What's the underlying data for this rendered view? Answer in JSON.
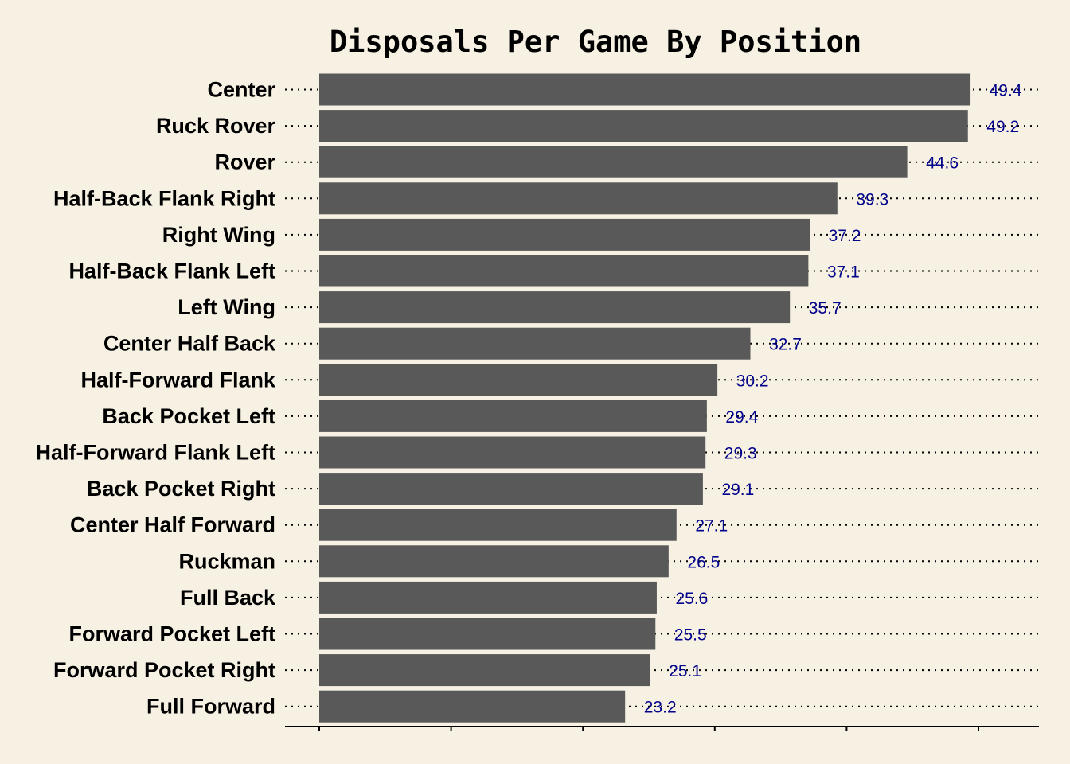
{
  "chart_data": {
    "type": "bar",
    "orientation": "horizontal",
    "title": "Disposals Per Game By Position",
    "xlabel": "",
    "ylabel": "",
    "categories": [
      "Center",
      "Ruck Rover",
      "Rover",
      "Half-Back Flank Right",
      "Right Wing",
      "Half-Back Flank Left",
      "Left Wing",
      "Center Half Back",
      "Half-Forward Flank",
      "Back Pocket Left",
      "Half-Forward Flank Left",
      "Back Pocket Right",
      "Center Half Forward",
      "Ruckman",
      "Full Back",
      "Forward Pocket Left",
      "Forward Pocket Right",
      "Full Forward"
    ],
    "values": [
      49.4,
      49.2,
      44.6,
      39.3,
      37.2,
      37.1,
      35.7,
      32.7,
      30.2,
      29.4,
      29.3,
      29.1,
      27.1,
      26.5,
      25.6,
      25.5,
      25.1,
      23.2
    ],
    "value_labels": [
      "49.4",
      "49.2",
      "44.6",
      "39.3",
      "37.2",
      "37.1",
      "35.7",
      "32.7",
      "30.2",
      "29.4",
      "29.3",
      "29.1",
      "27.1",
      "26.5",
      "25.6",
      "25.5",
      "25.1",
      "23.2"
    ],
    "xlim": [
      0,
      54.6
    ],
    "x_ticks": [
      0,
      10,
      20,
      30,
      40,
      50
    ],
    "tick_labels_shown": false,
    "grid": false,
    "legend": "none",
    "sorted": "descending"
  },
  "colors": {
    "background": "#f6f1e3",
    "bar": "#595959",
    "value_label": "#00008b",
    "dotted_guide": "#000000",
    "text": "#000000"
  }
}
